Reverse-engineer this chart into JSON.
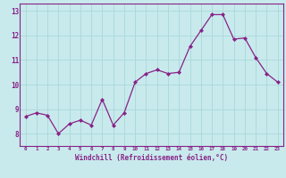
{
  "x": [
    0,
    1,
    2,
    3,
    4,
    5,
    6,
    7,
    8,
    9,
    10,
    11,
    12,
    13,
    14,
    15,
    16,
    17,
    18,
    19,
    20,
    21,
    22,
    23
  ],
  "y": [
    8.7,
    8.85,
    8.75,
    8.0,
    8.4,
    8.55,
    8.35,
    9.4,
    8.35,
    8.85,
    10.1,
    10.45,
    10.6,
    10.45,
    10.5,
    11.55,
    12.2,
    12.85,
    12.85,
    11.85,
    11.9,
    11.1,
    10.45,
    10.1
  ],
  "xlabel": "Windchill (Refroidissement éolien,°C)",
  "ylim": [
    7.5,
    13.3
  ],
  "xlim": [
    -0.5,
    23.5
  ],
  "yticks": [
    8,
    9,
    10,
    11,
    12,
    13
  ],
  "xticks": [
    0,
    1,
    2,
    3,
    4,
    5,
    6,
    7,
    8,
    9,
    10,
    11,
    12,
    13,
    14,
    15,
    16,
    17,
    18,
    19,
    20,
    21,
    22,
    23
  ],
  "line_color": "#882288",
  "marker_color": "#882288",
  "bg_color": "#c8eaec",
  "grid_color": "#aad8da",
  "axis_label_color": "#882288",
  "tick_label_color": "#882288",
  "spine_color": "#882288"
}
